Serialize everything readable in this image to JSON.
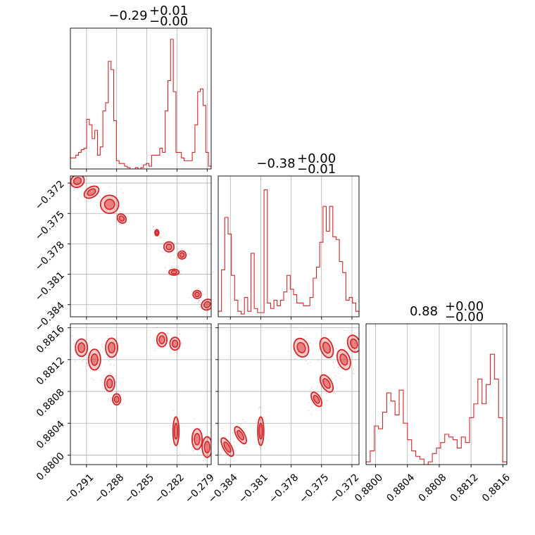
{
  "chart_data": {
    "type": "corner",
    "color": "#d62728",
    "grid": true,
    "params": [
      {
        "title": {
          "value": "−0.29",
          "plus": "+0.01",
          "minus": "−0.00"
        },
        "range": [
          -0.2926,
          -0.2786
        ],
        "ticks": [
          -0.291,
          -0.288,
          -0.285,
          -0.282,
          -0.279
        ],
        "ticklabels": [
          "−0.291",
          "−0.288",
          "−0.285",
          "−0.282",
          "−0.279"
        ],
        "hist": [
          0.08,
          0.08,
          0.1,
          0.12,
          0.14,
          0.15,
          0.36,
          0.32,
          0.22,
          0.28,
          0.1,
          0.16,
          0.42,
          0.48,
          0.78,
          0.72,
          0.35,
          0.06,
          0.04,
          0.04,
          0.02,
          0.01,
          0.0,
          0.0,
          0.01,
          0.0,
          0.01,
          0.03,
          0.04,
          0.02,
          0.1,
          0.1,
          0.1,
          0.15,
          0.12,
          0.42,
          0.64,
          0.94,
          0.56,
          0.12,
          0.12,
          0.08,
          0.06,
          0.06,
          0.06,
          0.12,
          0.32,
          0.56,
          0.58,
          0.46,
          0.12,
          0.02
        ]
      },
      {
        "title": {
          "value": "−0.38",
          "plus": "+0.00",
          "minus": "−0.01"
        },
        "range": [
          -0.3852,
          -0.3713
        ],
        "ticks": [
          -0.384,
          -0.381,
          -0.378,
          -0.375,
          -0.372
        ],
        "ticklabels": [
          "−0.384",
          "−0.381",
          "−0.378",
          "−0.375",
          "−0.372"
        ],
        "hist": [
          0.04,
          0.34,
          0.72,
          0.6,
          0.3,
          0.12,
          0.04,
          0.02,
          0.14,
          0.04,
          0.46,
          0.06,
          0.03,
          0.03,
          0.92,
          0.1,
          0.06,
          0.12,
          0.08,
          0.12,
          0.18,
          0.3,
          0.2,
          0.16,
          0.1,
          0.1,
          0.08,
          0.08,
          0.14,
          0.28,
          0.36,
          0.54,
          0.8,
          0.62,
          0.8,
          0.58,
          0.56,
          0.4,
          0.32,
          0.12,
          0.14,
          0.1,
          0.04
        ]
      },
      {
        "title": {
          "value": "0.88",
          "plus": "+0.00",
          "minus": "−0.00"
        },
        "range": [
          0.87988,
          0.88165
        ],
        "ticks": [
          0.88,
          0.8804,
          0.8808,
          0.8812,
          0.8816
        ],
        "ticklabels": [
          "0.8800",
          "0.8804",
          "0.8808",
          "0.8812",
          "0.8816"
        ],
        "hist": [
          0.02,
          0.1,
          0.28,
          0.26,
          0.38,
          0.52,
          0.46,
          0.36,
          0.54,
          0.3,
          0.18,
          0.1,
          0.06,
          0.04,
          0.0,
          0.02,
          0.08,
          0.12,
          0.16,
          0.22,
          0.2,
          0.18,
          0.12,
          0.2,
          0.16,
          0.34,
          0.44,
          0.62,
          0.44,
          0.58,
          0.8,
          0.62,
          0.34,
          0.02
        ]
      }
    ],
    "pairs": [
      {
        "x": 0,
        "y": 1,
        "clusters": [
          {
            "cx": -0.2919,
            "cy": -0.3718,
            "rx": 0.0007,
            "ry": 0.0006,
            "angle": -32
          },
          {
            "cx": -0.2905,
            "cy": -0.3729,
            "rx": 0.0008,
            "ry": 0.0005,
            "angle": -32
          },
          {
            "cx": -0.2887,
            "cy": -0.3741,
            "rx": 0.0009,
            "ry": 0.0009,
            "angle": -40
          },
          {
            "cx": -0.2875,
            "cy": -0.3755,
            "rx": 0.0004,
            "ry": 0.0005,
            "angle": -40
          },
          {
            "cx": -0.284,
            "cy": -0.3769,
            "rx": 0.0002,
            "ry": 0.0003,
            "angle": 0
          },
          {
            "cx": -0.2828,
            "cy": -0.3783,
            "rx": 0.0005,
            "ry": 0.0005,
            "angle": -40
          },
          {
            "cx": -0.2815,
            "cy": -0.3791,
            "rx": 0.0004,
            "ry": 0.0004,
            "angle": -40
          },
          {
            "cx": -0.2823,
            "cy": -0.3808,
            "rx": 0.0005,
            "ry": 0.0003,
            "angle": 0
          },
          {
            "cx": -0.28,
            "cy": -0.383,
            "rx": 0.0004,
            "ry": 0.0004,
            "angle": -35
          },
          {
            "cx": -0.279,
            "cy": -0.384,
            "rx": 0.0006,
            "ry": 0.0005,
            "angle": -35
          }
        ]
      },
      {
        "x": 0,
        "y": 2,
        "clusters": [
          {
            "cx": -0.2915,
            "cy": 0.88135,
            "rx": 0.0006,
            "ry": 0.00011,
            "angle": 0
          },
          {
            "cx": -0.2902,
            "cy": 0.8812,
            "rx": 0.0006,
            "ry": 0.00013,
            "angle": 0
          },
          {
            "cx": -0.2885,
            "cy": 0.88135,
            "rx": 0.0006,
            "ry": 0.00012,
            "angle": 0
          },
          {
            "cx": -0.2887,
            "cy": 0.8809,
            "rx": 0.0005,
            "ry": 0.0001,
            "angle": 0
          },
          {
            "cx": -0.288,
            "cy": 0.8807,
            "rx": 0.0004,
            "ry": 7e-05,
            "angle": 0
          },
          {
            "cx": -0.2835,
            "cy": 0.88145,
            "rx": 0.0005,
            "ry": 9e-05,
            "angle": 0
          },
          {
            "cx": -0.2822,
            "cy": 0.8814,
            "rx": 0.0005,
            "ry": 8e-05,
            "angle": 0
          },
          {
            "cx": -0.2821,
            "cy": 0.8803,
            "rx": 0.0003,
            "ry": 0.00018,
            "angle": 0
          },
          {
            "cx": -0.28,
            "cy": 0.8802,
            "rx": 0.0005,
            "ry": 0.00013,
            "angle": 0
          },
          {
            "cx": -0.279,
            "cy": 0.8801,
            "rx": 0.0005,
            "ry": 0.00013,
            "angle": 0
          }
        ]
      },
      {
        "x": 1,
        "y": 2,
        "clusters": [
          {
            "cx": -0.3843,
            "cy": 0.8801,
            "rx": 0.0004,
            "ry": 0.00013,
            "angle": -30
          },
          {
            "cx": -0.383,
            "cy": 0.88025,
            "rx": 0.0004,
            "ry": 0.00012,
            "angle": -30
          },
          {
            "cx": -0.381,
            "cy": 0.8803,
            "rx": 0.0003,
            "ry": 0.00018,
            "angle": 0
          },
          {
            "cx": -0.377,
            "cy": 0.88135,
            "rx": 0.0007,
            "ry": 0.00012,
            "angle": -20
          },
          {
            "cx": -0.3755,
            "cy": 0.8807,
            "rx": 0.0004,
            "ry": 0.0001,
            "angle": -30
          },
          {
            "cx": -0.3745,
            "cy": 0.8809,
            "rx": 0.0005,
            "ry": 0.00012,
            "angle": -30
          },
          {
            "cx": -0.3745,
            "cy": 0.88135,
            "rx": 0.0006,
            "ry": 0.00013,
            "angle": -20
          },
          {
            "cx": -0.3728,
            "cy": 0.8812,
            "rx": 0.0006,
            "ry": 0.00013,
            "angle": -20
          },
          {
            "cx": -0.3718,
            "cy": 0.8814,
            "rx": 0.0006,
            "ry": 0.00011,
            "angle": -20
          }
        ]
      }
    ]
  }
}
